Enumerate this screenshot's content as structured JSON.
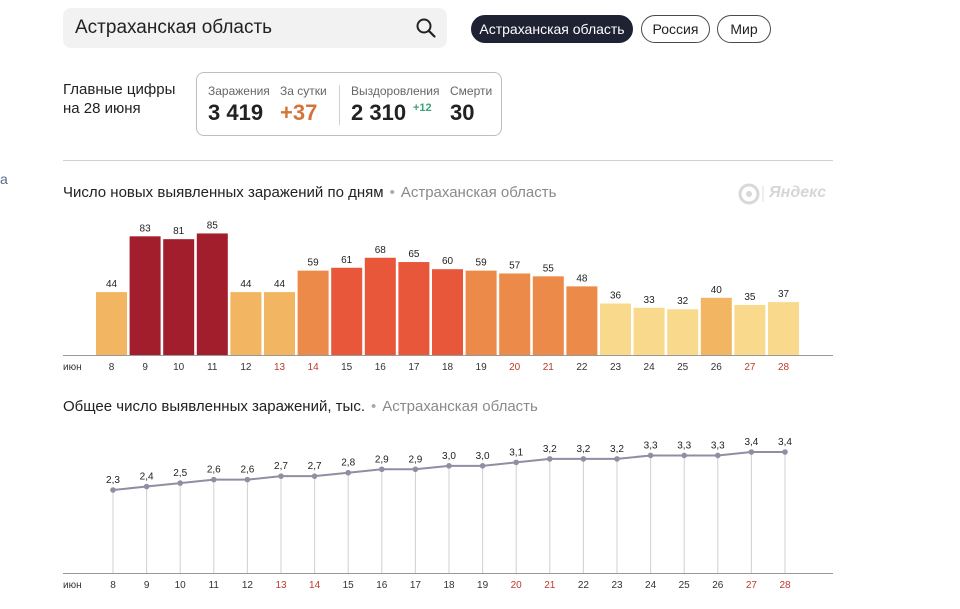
{
  "search": {
    "value": "Астраханская область"
  },
  "region_tabs": [
    {
      "label": "Астраханская область",
      "active": true
    },
    {
      "label": "Россия",
      "active": false
    },
    {
      "label": "Мир",
      "active": false
    }
  ],
  "summary": {
    "title_line1": "Главные цифры",
    "title_line2": "на 28 июня",
    "infections_label": "Заражения",
    "infections_value": "3 419",
    "daily_label": "За сутки",
    "daily_value": "+37",
    "recoveries_label": "Выздоровления",
    "recoveries_value": "2 310",
    "recoveries_delta": "+12",
    "deaths_label": "Смерти",
    "deaths_value": "30"
  },
  "left_fragment": "а",
  "logo_text": "Яндекс",
  "colors": {
    "daily_delta": "#d4743a",
    "recoveries_delta": "#3aa37a",
    "weekend_tick": "#c0392b",
    "bar_palette": [
      "#f2b662",
      "#a31e2d",
      "#ec8a4a",
      "#e8573a",
      "#f9d98c"
    ]
  },
  "chart_data": [
    {
      "type": "bar",
      "title": "Число новых выявленных заражений по дням",
      "subtitle": "Астраханская область",
      "month_label": "июн",
      "categories": [
        "8",
        "9",
        "10",
        "11",
        "12",
        "13",
        "14",
        "15",
        "16",
        "17",
        "18",
        "19",
        "20",
        "21",
        "22",
        "23",
        "24",
        "25",
        "26",
        "27",
        "28"
      ],
      "weekend_categories": [
        "13",
        "14",
        "20",
        "21",
        "27",
        "28"
      ],
      "values": [
        44,
        83,
        81,
        85,
        44,
        44,
        59,
        61,
        68,
        65,
        60,
        59,
        57,
        55,
        48,
        36,
        33,
        32,
        40,
        35,
        37
      ],
      "ylim": [
        0,
        85
      ]
    },
    {
      "type": "line",
      "title": "Общее число выявленных заражений, тыс.",
      "subtitle": "Астраханская область",
      "month_label": "июн",
      "categories": [
        "8",
        "9",
        "10",
        "11",
        "12",
        "13",
        "14",
        "15",
        "16",
        "17",
        "18",
        "19",
        "20",
        "21",
        "22",
        "23",
        "24",
        "25",
        "26",
        "27",
        "28"
      ],
      "weekend_categories": [
        "13",
        "14",
        "20",
        "21",
        "27",
        "28"
      ],
      "values": [
        2.3,
        2.4,
        2.5,
        2.6,
        2.6,
        2.7,
        2.7,
        2.8,
        2.9,
        2.9,
        3.0,
        3.0,
        3.1,
        3.2,
        3.2,
        3.2,
        3.3,
        3.3,
        3.3,
        3.4,
        3.4
      ],
      "value_labels": [
        "2,3",
        "2,4",
        "2,5",
        "2,6",
        "2,6",
        "2,7",
        "2,7",
        "2,8",
        "2,9",
        "2,9",
        "3,0",
        "3,0",
        "3,1",
        "3,2",
        "3,2",
        "3,2",
        "3,3",
        "3,3",
        "3,3",
        "3,4",
        "3,4"
      ],
      "ylim": [
        0,
        3.4
      ]
    }
  ]
}
